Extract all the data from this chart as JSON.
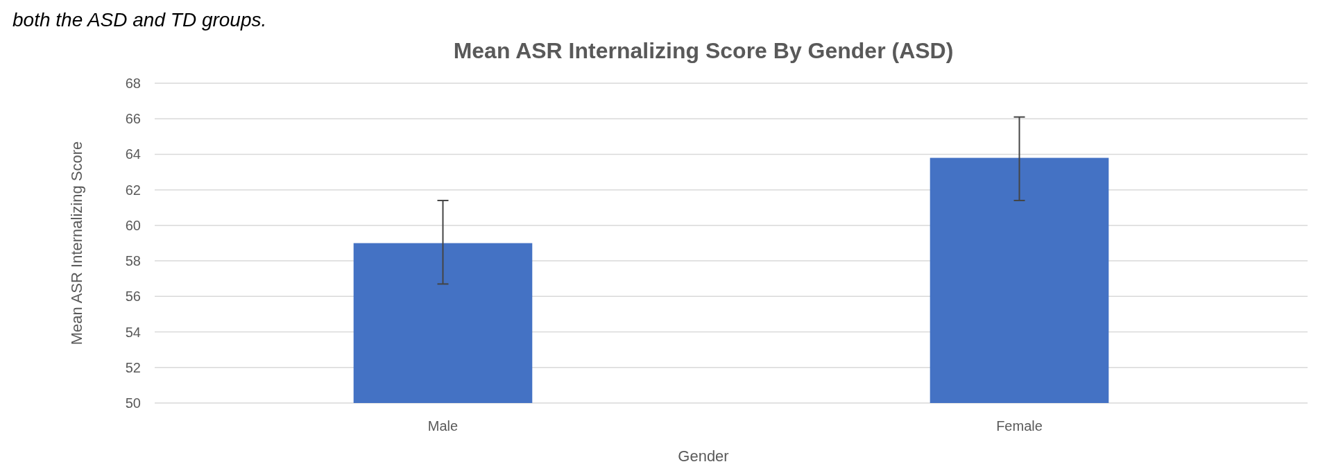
{
  "chart_data": {
    "type": "bar",
    "title": "Mean ASR Internalizing Score By Gender (ASD)",
    "xlabel": "Gender",
    "ylabel": "Mean ASR Internalizing Score",
    "annotations": [
      "both the ASD and TD groups."
    ],
    "categories": [
      "Male",
      "Female"
    ],
    "values": [
      59.0,
      63.8
    ],
    "color": "#4472c4",
    "errors": [
      [
        56.7,
        61.4
      ],
      [
        61.4,
        66.1
      ]
    ],
    "ylim": [
      50,
      68
    ],
    "yticks": [
      50,
      52,
      54,
      56,
      58,
      60,
      62,
      64,
      66,
      68
    ],
    "grid": "y"
  }
}
